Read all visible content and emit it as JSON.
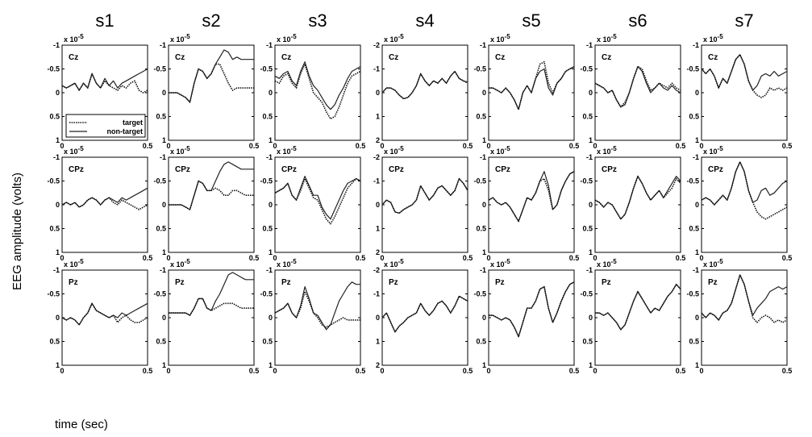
{
  "chart_data": {
    "type": "line",
    "subjects": [
      "s1",
      "s2",
      "s3",
      "s4",
      "s5",
      "s6",
      "s7"
    ],
    "electrodes": [
      "Cz",
      "CPz",
      "Pz"
    ],
    "xlabel": "time (sec)",
    "ylabel": "EEG amplitude (volts)",
    "xlim": [
      0,
      0.5
    ],
    "x_ticks": [
      "0",
      "0.5"
    ],
    "y_inverted": true,
    "y_multiplier_text": "x 10",
    "y_multiplier_exp": "-5",
    "y_ticks_default": [
      "-1",
      "-0.5",
      "0",
      "0.5",
      "1"
    ],
    "y_ticks_s4": [
      "-2",
      "-1",
      "0",
      "1",
      "2"
    ],
    "ylim_default": [
      -1,
      1
    ],
    "ylim_s4": [
      -2,
      2
    ],
    "legend": {
      "location": "lower-left",
      "panel": "s1-Cz",
      "entries": [
        "target",
        "non-target"
      ]
    },
    "series_style": {
      "target": "dotted",
      "non-target": "solid"
    },
    "x": [
      0,
      0.025,
      0.05,
      0.075,
      0.1,
      0.125,
      0.15,
      0.175,
      0.2,
      0.225,
      0.25,
      0.275,
      0.3,
      0.325,
      0.35,
      0.375,
      0.4,
      0.425,
      0.45,
      0.475,
      0.5
    ],
    "panels": [
      {
        "subject": "s1",
        "electrode": "Cz",
        "target": [
          -0.15,
          -0.1,
          -0.15,
          -0.2,
          -0.05,
          -0.2,
          -0.1,
          -0.4,
          -0.2,
          -0.1,
          -0.25,
          -0.15,
          -0.1,
          -0.05,
          -0.15,
          -0.1,
          -0.2,
          -0.25,
          -0.05,
          0.0,
          -0.05
        ],
        "non-target": [
          -0.15,
          -0.1,
          -0.15,
          -0.2,
          -0.05,
          -0.2,
          -0.1,
          -0.4,
          -0.2,
          -0.1,
          -0.3,
          -0.15,
          -0.25,
          -0.1,
          -0.2,
          -0.25,
          -0.3,
          -0.35,
          -0.4,
          -0.45,
          -0.5
        ]
      },
      {
        "subject": "s1",
        "electrode": "CPz",
        "target": [
          0.0,
          -0.05,
          0.0,
          -0.05,
          0.05,
          0.0,
          -0.1,
          -0.15,
          -0.1,
          0.0,
          -0.1,
          -0.15,
          -0.05,
          0.0,
          -0.1,
          -0.05,
          0.0,
          0.05,
          0.1,
          0.05,
          0.0
        ],
        "non-target": [
          0.0,
          -0.05,
          0.0,
          -0.05,
          0.05,
          0.0,
          -0.1,
          -0.15,
          -0.1,
          0.0,
          -0.1,
          -0.15,
          -0.1,
          -0.05,
          -0.15,
          -0.1,
          -0.15,
          -0.2,
          -0.25,
          -0.3,
          -0.35
        ]
      },
      {
        "subject": "s1",
        "electrode": "Pz",
        "target": [
          0.0,
          0.05,
          0.0,
          0.05,
          0.15,
          0.0,
          -0.1,
          -0.3,
          -0.15,
          -0.1,
          -0.05,
          0.0,
          -0.05,
          0.1,
          0.0,
          -0.05,
          0.05,
          0.1,
          0.1,
          0.05,
          0.0
        ],
        "non-target": [
          0.0,
          0.05,
          0.0,
          0.05,
          0.15,
          0.0,
          -0.1,
          -0.3,
          -0.15,
          -0.1,
          -0.05,
          0.0,
          -0.05,
          0.0,
          -0.1,
          -0.05,
          -0.1,
          -0.15,
          -0.2,
          -0.25,
          -0.3
        ]
      },
      {
        "subject": "s2",
        "electrode": "Cz",
        "target": [
          0.0,
          0.0,
          0.0,
          0.05,
          0.1,
          0.2,
          -0.2,
          -0.5,
          -0.45,
          -0.3,
          -0.4,
          -0.6,
          -0.6,
          -0.4,
          -0.2,
          -0.05,
          -0.1,
          -0.1,
          -0.1,
          -0.1,
          -0.1
        ],
        "non-target": [
          0.0,
          0.0,
          0.0,
          0.05,
          0.1,
          0.2,
          -0.2,
          -0.5,
          -0.45,
          -0.3,
          -0.4,
          -0.6,
          -0.75,
          -0.9,
          -0.85,
          -0.7,
          -0.75,
          -0.7,
          -0.7,
          -0.7,
          -0.7
        ]
      },
      {
        "subject": "s2",
        "electrode": "CPz",
        "target": [
          0.0,
          0.0,
          0.0,
          0.0,
          0.05,
          0.1,
          -0.2,
          -0.5,
          -0.45,
          -0.3,
          -0.3,
          -0.35,
          -0.3,
          -0.2,
          -0.2,
          -0.3,
          -0.3,
          -0.25,
          -0.2,
          -0.2,
          -0.2
        ],
        "non-target": [
          0.0,
          0.0,
          0.0,
          0.0,
          0.05,
          0.1,
          -0.2,
          -0.5,
          -0.45,
          -0.3,
          -0.3,
          -0.5,
          -0.7,
          -0.85,
          -0.9,
          -0.85,
          -0.8,
          -0.75,
          -0.75,
          -0.75,
          -0.75
        ]
      },
      {
        "subject": "s2",
        "electrode": "Pz",
        "target": [
          -0.1,
          -0.1,
          -0.1,
          -0.1,
          -0.1,
          -0.05,
          -0.2,
          -0.4,
          -0.4,
          -0.2,
          -0.15,
          -0.2,
          -0.25,
          -0.3,
          -0.3,
          -0.3,
          -0.25,
          -0.2,
          -0.2,
          -0.2,
          -0.2
        ],
        "non-target": [
          -0.1,
          -0.1,
          -0.1,
          -0.1,
          -0.1,
          -0.05,
          -0.2,
          -0.4,
          -0.4,
          -0.2,
          -0.15,
          -0.35,
          -0.5,
          -0.7,
          -0.9,
          -0.95,
          -0.9,
          -0.85,
          -0.8,
          -0.8,
          -0.8
        ]
      },
      {
        "subject": "s3",
        "electrode": "Cz",
        "target": [
          -0.25,
          -0.2,
          -0.35,
          -0.4,
          -0.2,
          -0.1,
          -0.4,
          -0.6,
          -0.3,
          0.0,
          0.1,
          0.2,
          0.4,
          0.55,
          0.5,
          0.3,
          0.05,
          -0.2,
          -0.35,
          -0.4,
          -0.45
        ],
        "non-target": [
          -0.35,
          -0.3,
          -0.4,
          -0.45,
          -0.25,
          -0.15,
          -0.45,
          -0.65,
          -0.35,
          -0.15,
          -0.05,
          0.1,
          0.25,
          0.35,
          0.25,
          0.05,
          -0.1,
          -0.3,
          -0.45,
          -0.5,
          -0.55
        ]
      },
      {
        "subject": "s3",
        "electrode": "CPz",
        "target": [
          -0.25,
          -0.3,
          -0.35,
          -0.45,
          -0.2,
          -0.1,
          -0.3,
          -0.55,
          -0.35,
          -0.15,
          -0.1,
          0.1,
          0.3,
          0.4,
          0.25,
          0.05,
          -0.15,
          -0.35,
          -0.45,
          -0.55,
          -0.5
        ],
        "non-target": [
          -0.25,
          -0.3,
          -0.35,
          -0.45,
          -0.2,
          -0.1,
          -0.35,
          -0.6,
          -0.4,
          -0.2,
          -0.2,
          0.05,
          0.2,
          0.3,
          0.1,
          -0.1,
          -0.3,
          -0.45,
          -0.5,
          -0.55,
          -0.5
        ]
      },
      {
        "subject": "s3",
        "electrode": "Pz",
        "target": [
          -0.1,
          -0.15,
          -0.2,
          -0.3,
          -0.1,
          0.0,
          -0.2,
          -0.55,
          -0.35,
          -0.1,
          0.0,
          0.15,
          0.2,
          0.15,
          0.1,
          0.05,
          0.0,
          0.05,
          0.05,
          0.05,
          0.05
        ],
        "non-target": [
          -0.1,
          -0.15,
          -0.2,
          -0.3,
          -0.1,
          0.0,
          -0.25,
          -0.65,
          -0.4,
          -0.1,
          -0.05,
          0.1,
          0.25,
          0.15,
          -0.1,
          -0.35,
          -0.5,
          -0.65,
          -0.75,
          -0.7,
          -0.7
        ]
      },
      {
        "subject": "s4",
        "electrode": "Cz",
        "target": [
          0.0,
          -0.2,
          -0.2,
          -0.1,
          0.1,
          0.25,
          0.2,
          0.0,
          -0.3,
          -0.8,
          -0.5,
          -0.3,
          -0.5,
          -0.4,
          -0.6,
          -0.4,
          -0.7,
          -0.9,
          -0.6,
          -0.5,
          -0.4
        ],
        "non-target": [
          0.0,
          -0.2,
          -0.2,
          -0.1,
          0.1,
          0.25,
          0.2,
          0.0,
          -0.3,
          -0.8,
          -0.5,
          -0.3,
          -0.5,
          -0.4,
          -0.6,
          -0.4,
          -0.7,
          -0.9,
          -0.6,
          -0.5,
          -0.45
        ]
      },
      {
        "subject": "s4",
        "electrode": "CPz",
        "target": [
          0.0,
          -0.2,
          -0.1,
          0.3,
          0.35,
          0.2,
          0.1,
          0.0,
          -0.2,
          -0.8,
          -0.5,
          -0.2,
          -0.4,
          -0.7,
          -0.8,
          -0.6,
          -0.4,
          -0.6,
          -1.1,
          -0.9,
          -0.6
        ],
        "non-target": [
          0.0,
          -0.2,
          -0.1,
          0.3,
          0.35,
          0.2,
          0.1,
          0.0,
          -0.2,
          -0.8,
          -0.5,
          -0.2,
          -0.4,
          -0.7,
          -0.8,
          -0.6,
          -0.4,
          -0.6,
          -1.1,
          -0.9,
          -0.6
        ]
      },
      {
        "subject": "s4",
        "electrode": "Pz",
        "target": [
          0.0,
          -0.2,
          0.2,
          0.6,
          0.35,
          0.2,
          0.0,
          -0.1,
          -0.2,
          -0.6,
          -0.3,
          -0.1,
          -0.3,
          -0.6,
          -0.7,
          -0.5,
          -0.2,
          -0.5,
          -0.9,
          -0.8,
          -0.7
        ],
        "non-target": [
          0.0,
          -0.2,
          0.2,
          0.6,
          0.35,
          0.2,
          0.0,
          -0.1,
          -0.2,
          -0.6,
          -0.3,
          -0.1,
          -0.3,
          -0.6,
          -0.7,
          -0.5,
          -0.2,
          -0.5,
          -0.9,
          -0.8,
          -0.7
        ]
      },
      {
        "subject": "s5",
        "electrode": "Cz",
        "target": [
          -0.1,
          -0.1,
          -0.05,
          0.0,
          -0.1,
          0.0,
          0.15,
          0.35,
          0.0,
          -0.15,
          0.0,
          -0.3,
          -0.6,
          -0.65,
          -0.2,
          0.0,
          -0.2,
          -0.3,
          -0.45,
          -0.5,
          -0.55
        ],
        "non-target": [
          -0.1,
          -0.1,
          -0.05,
          0.0,
          -0.1,
          0.0,
          0.15,
          0.35,
          0.0,
          -0.15,
          0.0,
          -0.3,
          -0.45,
          -0.5,
          -0.1,
          0.05,
          -0.2,
          -0.3,
          -0.45,
          -0.5,
          -0.55
        ]
      },
      {
        "subject": "s5",
        "electrode": "CPz",
        "target": [
          -0.1,
          -0.15,
          -0.05,
          0.0,
          -0.05,
          0.05,
          0.2,
          0.35,
          0.1,
          -0.15,
          -0.1,
          -0.25,
          -0.5,
          -0.55,
          -0.3,
          0.1,
          0.0,
          -0.3,
          -0.5,
          -0.65,
          -0.7
        ],
        "non-target": [
          -0.1,
          -0.15,
          -0.05,
          0.0,
          -0.05,
          0.05,
          0.2,
          0.35,
          0.1,
          -0.15,
          -0.1,
          -0.25,
          -0.5,
          -0.7,
          -0.4,
          0.1,
          0.0,
          -0.3,
          -0.5,
          -0.65,
          -0.7
        ]
      },
      {
        "subject": "s5",
        "electrode": "Pz",
        "target": [
          -0.05,
          -0.05,
          0.0,
          0.05,
          0.0,
          0.05,
          0.2,
          0.4,
          0.1,
          -0.2,
          -0.2,
          -0.35,
          -0.6,
          -0.65,
          -0.2,
          0.1,
          -0.1,
          -0.35,
          -0.55,
          -0.7,
          -0.75
        ],
        "non-target": [
          -0.05,
          -0.05,
          0.0,
          0.05,
          0.0,
          0.05,
          0.2,
          0.4,
          0.1,
          -0.2,
          -0.2,
          -0.35,
          -0.6,
          -0.65,
          -0.2,
          0.1,
          -0.1,
          -0.35,
          -0.55,
          -0.7,
          -0.75
        ]
      },
      {
        "subject": "s6",
        "electrode": "Cz",
        "target": [
          -0.2,
          -0.15,
          -0.1,
          0.0,
          -0.05,
          0.15,
          0.3,
          0.2,
          0.0,
          -0.3,
          -0.55,
          -0.5,
          -0.25,
          -0.05,
          -0.1,
          -0.2,
          -0.15,
          -0.1,
          -0.2,
          -0.1,
          -0.05
        ],
        "non-target": [
          -0.2,
          -0.15,
          -0.1,
          0.0,
          -0.05,
          0.15,
          0.3,
          0.25,
          0.0,
          -0.3,
          -0.55,
          -0.45,
          -0.2,
          0.0,
          -0.1,
          -0.2,
          -0.1,
          -0.05,
          -0.15,
          -0.05,
          0.0
        ]
      },
      {
        "subject": "s6",
        "electrode": "CPz",
        "target": [
          -0.1,
          -0.05,
          0.05,
          -0.05,
          0.0,
          0.15,
          0.3,
          0.2,
          -0.05,
          -0.35,
          -0.6,
          -0.45,
          -0.25,
          -0.1,
          -0.2,
          -0.3,
          -0.15,
          -0.25,
          -0.35,
          -0.55,
          -0.45
        ],
        "non-target": [
          -0.1,
          -0.05,
          0.05,
          -0.05,
          0.0,
          0.15,
          0.3,
          0.2,
          -0.05,
          -0.35,
          -0.6,
          -0.45,
          -0.25,
          -0.1,
          -0.2,
          -0.3,
          -0.15,
          -0.3,
          -0.45,
          -0.6,
          -0.5
        ]
      },
      {
        "subject": "s6",
        "electrode": "Pz",
        "target": [
          -0.1,
          -0.1,
          -0.05,
          -0.1,
          0.0,
          0.1,
          0.25,
          0.15,
          -0.1,
          -0.35,
          -0.55,
          -0.4,
          -0.25,
          -0.1,
          -0.2,
          -0.15,
          -0.3,
          -0.45,
          -0.55,
          -0.7,
          -0.6
        ],
        "non-target": [
          -0.1,
          -0.1,
          -0.05,
          -0.1,
          0.0,
          0.1,
          0.25,
          0.15,
          -0.1,
          -0.35,
          -0.55,
          -0.4,
          -0.25,
          -0.1,
          -0.2,
          -0.15,
          -0.3,
          -0.45,
          -0.55,
          -0.7,
          -0.6
        ]
      },
      {
        "subject": "s7",
        "electrode": "Cz",
        "target": [
          -0.5,
          -0.4,
          -0.5,
          -0.35,
          -0.1,
          -0.3,
          -0.2,
          -0.45,
          -0.7,
          -0.8,
          -0.6,
          -0.25,
          -0.05,
          0.05,
          0.1,
          0.05,
          -0.1,
          -0.05,
          -0.1,
          -0.05,
          -0.1
        ],
        "non-target": [
          -0.5,
          -0.4,
          -0.5,
          -0.35,
          -0.1,
          -0.3,
          -0.2,
          -0.45,
          -0.7,
          -0.8,
          -0.6,
          -0.25,
          -0.05,
          -0.15,
          -0.35,
          -0.4,
          -0.35,
          -0.45,
          -0.35,
          -0.4,
          -0.45
        ]
      },
      {
        "subject": "s7",
        "electrode": "CPz",
        "target": [
          -0.1,
          -0.15,
          -0.1,
          0.0,
          -0.1,
          -0.2,
          -0.1,
          -0.35,
          -0.7,
          -0.9,
          -0.7,
          -0.3,
          -0.05,
          0.15,
          0.25,
          0.3,
          0.25,
          0.2,
          0.15,
          0.1,
          0.05
        ],
        "non-target": [
          -0.1,
          -0.15,
          -0.1,
          0.0,
          -0.1,
          -0.2,
          -0.1,
          -0.35,
          -0.7,
          -0.9,
          -0.7,
          -0.3,
          -0.05,
          -0.1,
          -0.3,
          -0.35,
          -0.2,
          -0.25,
          -0.35,
          -0.45,
          -0.5
        ]
      },
      {
        "subject": "s7",
        "electrode": "Pz",
        "target": [
          -0.1,
          0.0,
          -0.1,
          -0.05,
          0.05,
          -0.1,
          -0.15,
          -0.3,
          -0.6,
          -0.9,
          -0.7,
          -0.35,
          0.0,
          0.1,
          0.0,
          -0.05,
          0.0,
          0.1,
          0.05,
          0.1,
          0.05
        ],
        "non-target": [
          -0.1,
          0.0,
          -0.1,
          -0.05,
          0.05,
          -0.1,
          -0.15,
          -0.3,
          -0.6,
          -0.9,
          -0.7,
          -0.35,
          -0.05,
          -0.2,
          -0.3,
          -0.4,
          -0.55,
          -0.6,
          -0.65,
          -0.6,
          -0.65
        ]
      }
    ]
  }
}
